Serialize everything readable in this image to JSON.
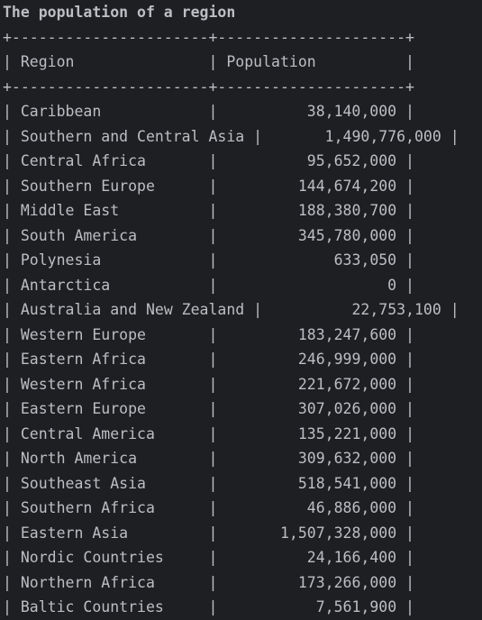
{
  "title": "The population of a region",
  "table": {
    "columns": [
      "Region",
      "Population"
    ],
    "rows": [
      [
        "Caribbean",
        "38,140,000"
      ],
      [
        "Southern and Central Asia",
        "1,490,776,000"
      ],
      [
        "Central Africa",
        "95,652,000"
      ],
      [
        "Southern Europe",
        "144,674,200"
      ],
      [
        "Middle East",
        "188,380,700"
      ],
      [
        "South America",
        "345,780,000"
      ],
      [
        "Polynesia",
        "633,050"
      ],
      [
        "Antarctica",
        "0"
      ],
      [
        "Australia and New Zealand",
        "22,753,100"
      ],
      [
        "Western Europe",
        "183,247,600"
      ],
      [
        "Eastern Africa",
        "246,999,000"
      ],
      [
        "Western Africa",
        "221,672,000"
      ],
      [
        "Eastern Europe",
        "307,026,000"
      ],
      [
        "Central America",
        "135,221,000"
      ],
      [
        "North America",
        "309,632,000"
      ],
      [
        "Southeast Asia",
        "518,541,000"
      ],
      [
        "Southern Africa",
        "46,886,000"
      ],
      [
        "Eastern Asia",
        "1,507,328,000"
      ],
      [
        "Nordic Countries",
        "24,166,400"
      ],
      [
        "Northern Africa",
        "173,266,000"
      ],
      [
        "Baltic Countries",
        "7,561,900"
      ]
    ]
  }
}
